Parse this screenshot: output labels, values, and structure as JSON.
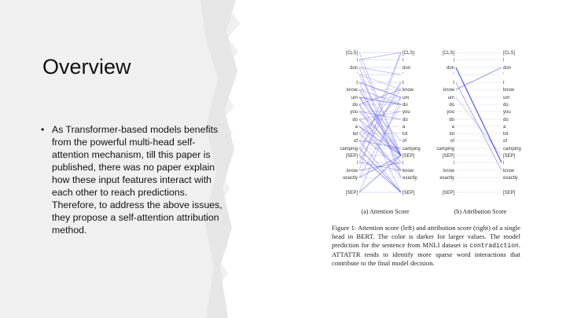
{
  "slide": {
    "title": "Overview",
    "bullet_symbol": "•",
    "bullets": [
      "As Transformer-based models benefits from the powerful multi-head self-attention mechanism, till this paper is published, there was no paper explain how these input features interact with each other to reach predictions. Therefore, to address the above issues, they propose a self-attention attribution method."
    ]
  },
  "figure": {
    "tokens": [
      "[CLS]",
      "i",
      "don",
      "'",
      "t",
      "know",
      "um",
      "do",
      "you",
      "do",
      "a",
      "lot",
      "of",
      "camping",
      "[SEP]",
      "i",
      "know",
      "exactly",
      "[SEP]"
    ],
    "subplot_a_label": "(a) Attention Score",
    "subplot_b_label": "(b) Attribution Score",
    "caption": {
      "part1": "Figure 1: Attention score (left) and attribution score (right) of a single head in BERT. The color is darker for larger values. The model prediction for the sentence from MNLI dataset is ",
      "mono": "contradiction",
      "part2": ". ATTATTR tends to identify more sparse word interactions that contribute to the final model decision."
    },
    "line_color": "#4646dc"
  }
}
